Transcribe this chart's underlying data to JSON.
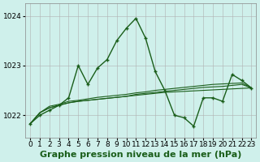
{
  "background_color": "#cff0eb",
  "plot_bg_color": "#cff0eb",
  "grid_color": "#b0b0b0",
  "line_color": "#1a5e1a",
  "marker_color": "#1a5e1a",
  "title": "Graphe pression niveau de la mer (hPa)",
  "xlim": [
    -0.5,
    23.5
  ],
  "ylim": [
    1021.55,
    1024.25
  ],
  "xticks": [
    0,
    1,
    2,
    3,
    4,
    5,
    6,
    7,
    8,
    9,
    10,
    11,
    12,
    13,
    14,
    15,
    16,
    17,
    18,
    19,
    20,
    21,
    22,
    23
  ],
  "yticks": [
    1022,
    1023,
    1024
  ],
  "main_series": [
    1021.83,
    1022.0,
    1022.1,
    1022.2,
    1022.35,
    1023.0,
    1022.62,
    1022.95,
    1023.12,
    1023.5,
    1023.75,
    1023.95,
    1023.55,
    1022.88,
    1022.5,
    1022.0,
    1021.95,
    1021.78,
    1022.35,
    1022.35,
    1022.28,
    1022.82,
    1022.7,
    1022.55
  ],
  "trend_lines": [
    [
      1021.83,
      1022.05,
      1022.15,
      1022.2,
      1022.25,
      1022.28,
      1022.3,
      1022.32,
      1022.34,
      1022.36,
      1022.38,
      1022.4,
      1022.42,
      1022.44,
      1022.46,
      1022.47,
      1022.48,
      1022.49,
      1022.5,
      1022.51,
      1022.52,
      1022.53,
      1022.54,
      1022.55
    ],
    [
      1021.83,
      1022.05,
      1022.15,
      1022.2,
      1022.25,
      1022.28,
      1022.3,
      1022.32,
      1022.34,
      1022.36,
      1022.38,
      1022.42,
      1022.44,
      1022.46,
      1022.48,
      1022.5,
      1022.52,
      1022.54,
      1022.56,
      1022.57,
      1022.58,
      1022.6,
      1022.62,
      1022.55
    ],
    [
      1021.83,
      1022.05,
      1022.18,
      1022.22,
      1022.28,
      1022.3,
      1022.33,
      1022.36,
      1022.38,
      1022.4,
      1022.42,
      1022.45,
      1022.47,
      1022.5,
      1022.52,
      1022.54,
      1022.56,
      1022.58,
      1022.6,
      1022.62,
      1022.63,
      1022.64,
      1022.65,
      1022.55
    ]
  ],
  "title_fontsize": 8,
  "tick_fontsize": 6.5
}
